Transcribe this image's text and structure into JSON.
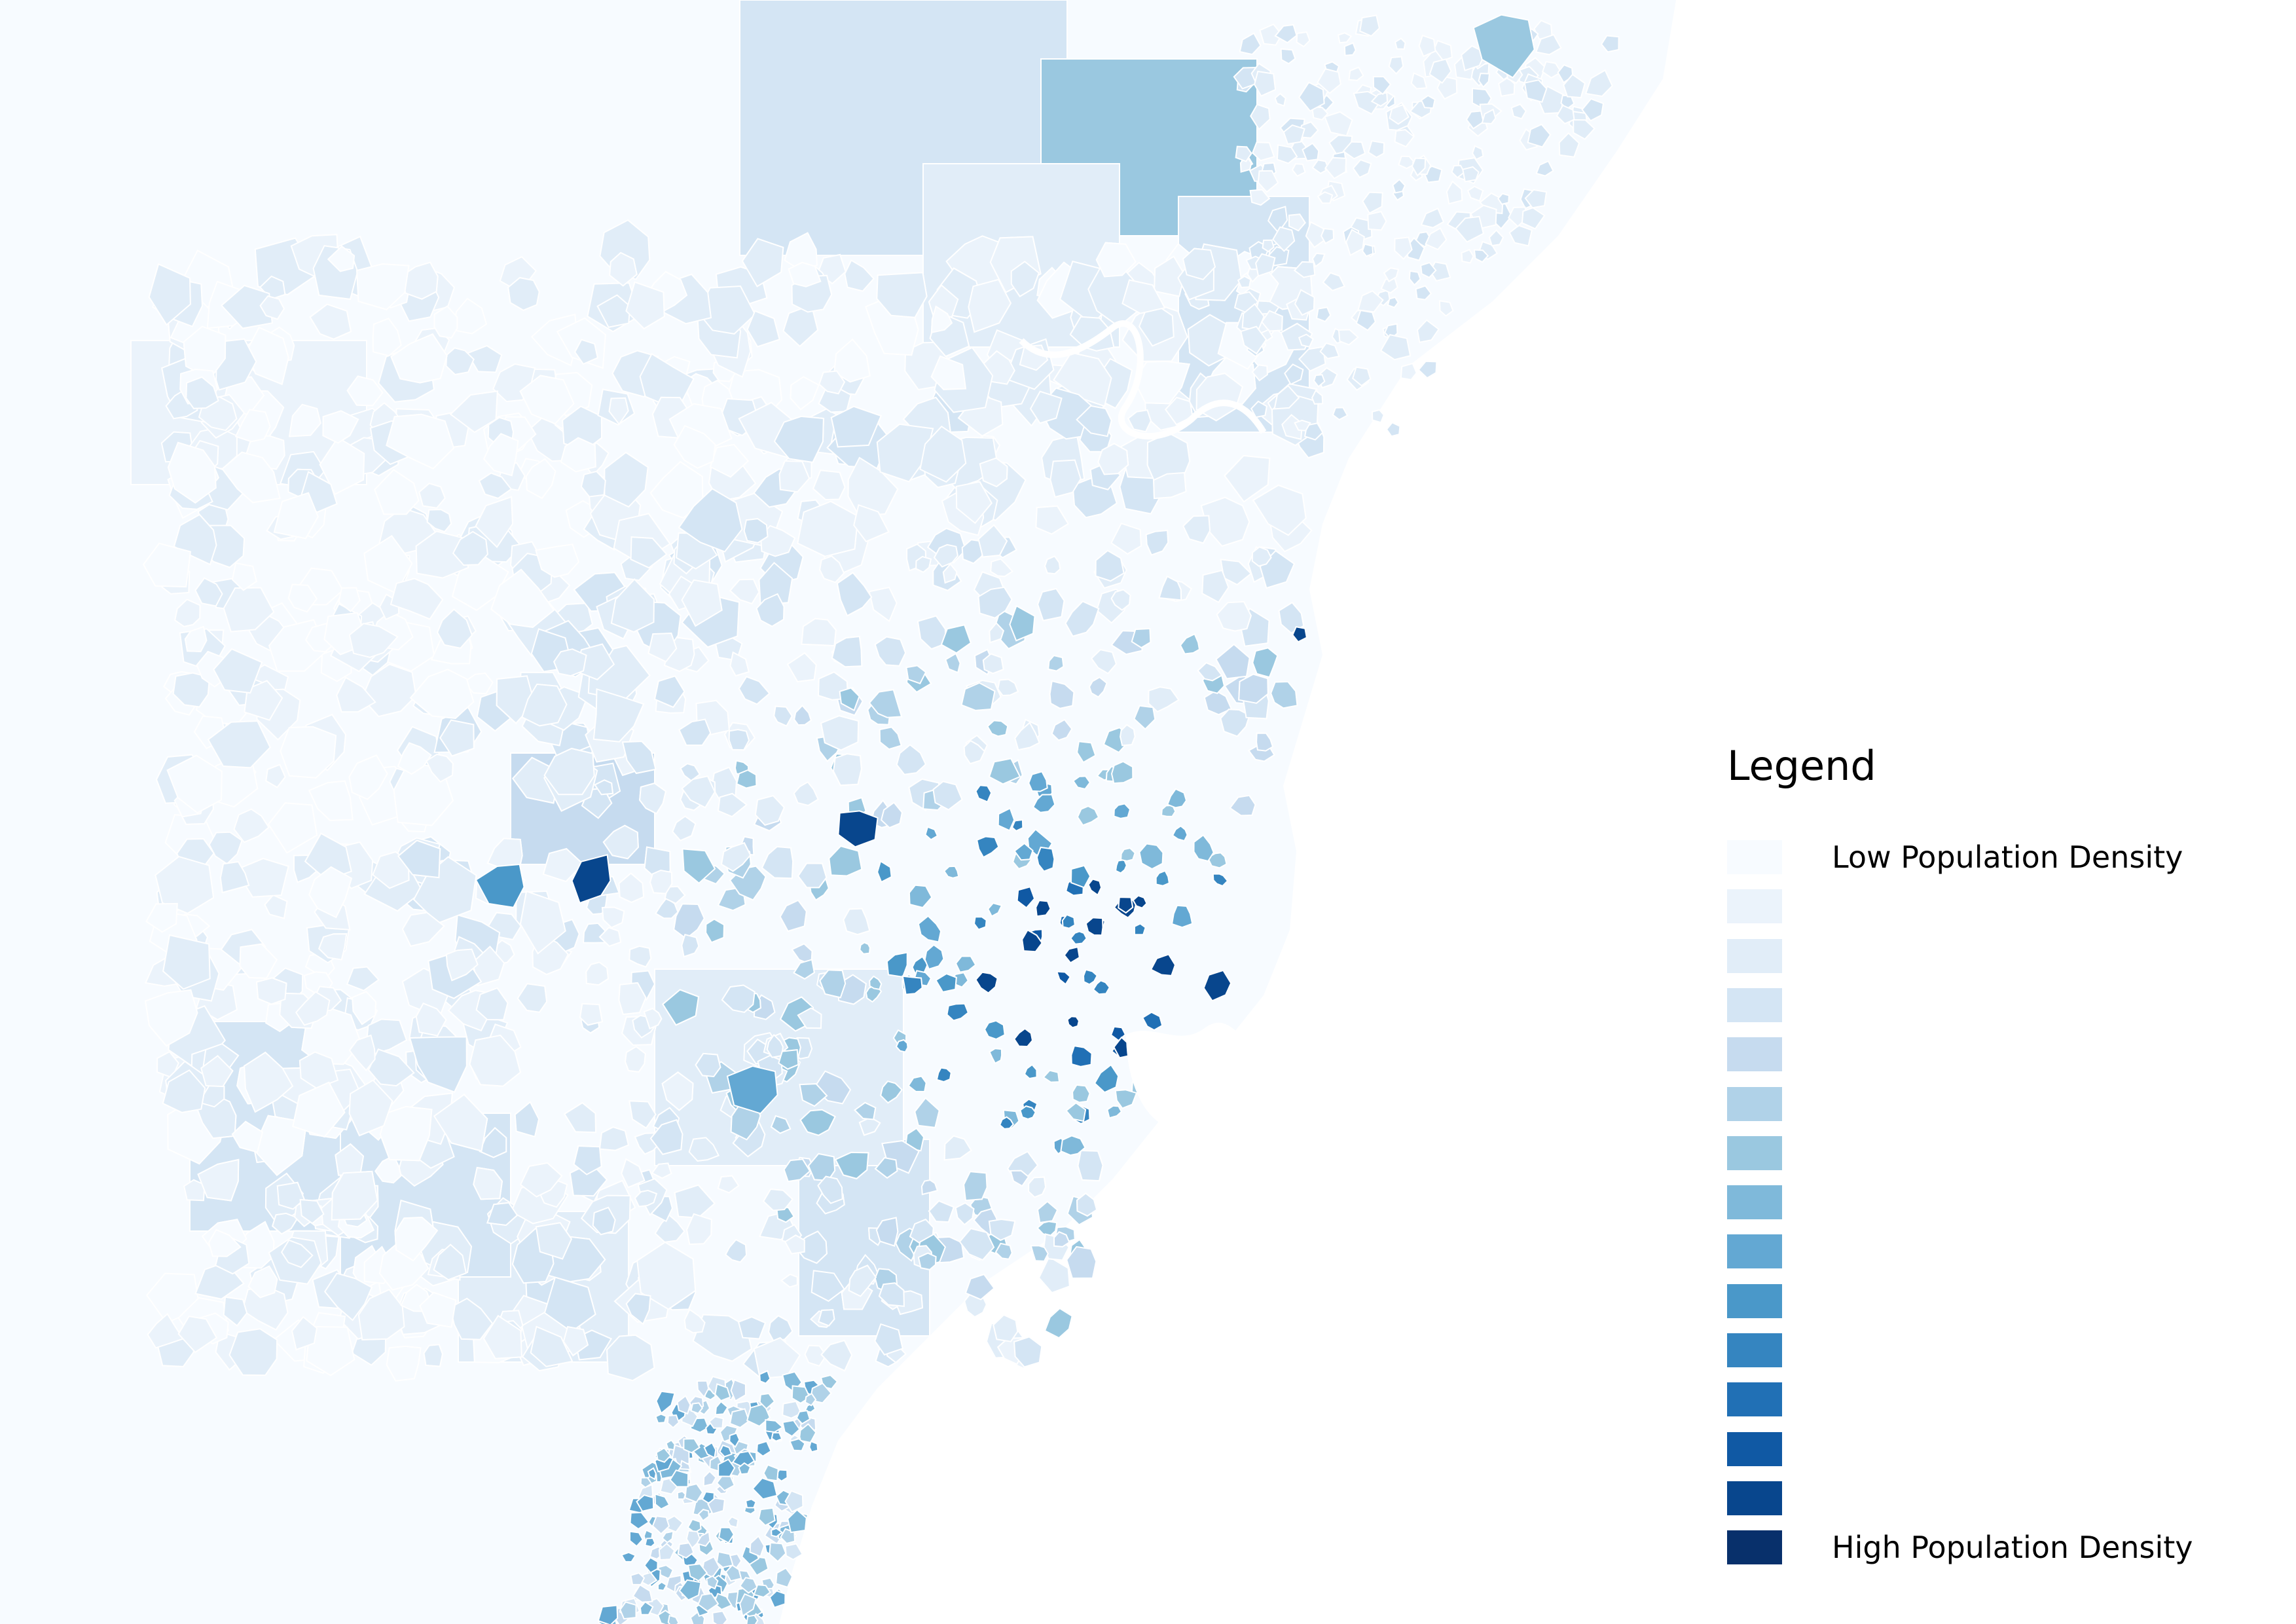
{
  "map": {
    "region": "",
    "colors": {
      "background": "#ffffff",
      "land_base": "#f7fbff",
      "ramp": [
        "#f7fbff",
        "#ebf3fb",
        "#e1edf8",
        "#d4e5f4",
        "#c6dbef",
        "#b0d2e8",
        "#9ac8e0",
        "#7fb9da",
        "#63a8d3",
        "#4a98c9",
        "#3585c0",
        "#2170b5",
        "#1059a4",
        "#08468d",
        "#08306b"
      ]
    }
  },
  "legend": {
    "title": "Legend",
    "classes": [
      {
        "label": "Low Population Density",
        "color": "#f7fbff"
      },
      {
        "label": "",
        "color": "#ebf3fb"
      },
      {
        "label": "",
        "color": "#e1edf8"
      },
      {
        "label": "",
        "color": "#d4e5f4"
      },
      {
        "label": "",
        "color": "#c6dbef"
      },
      {
        "label": "",
        "color": "#b0d2e8"
      },
      {
        "label": "",
        "color": "#9ac8e0"
      },
      {
        "label": "",
        "color": "#7fb9da"
      },
      {
        "label": "",
        "color": "#63a8d3"
      },
      {
        "label": "",
        "color": "#4a98c9"
      },
      {
        "label": "",
        "color": "#3585c0"
      },
      {
        "label": "",
        "color": "#2170b5"
      },
      {
        "label": "",
        "color": "#1059a4"
      },
      {
        "label": "",
        "color": "#08468d"
      },
      {
        "label": "High Population Density",
        "color": "#08306b"
      }
    ]
  }
}
